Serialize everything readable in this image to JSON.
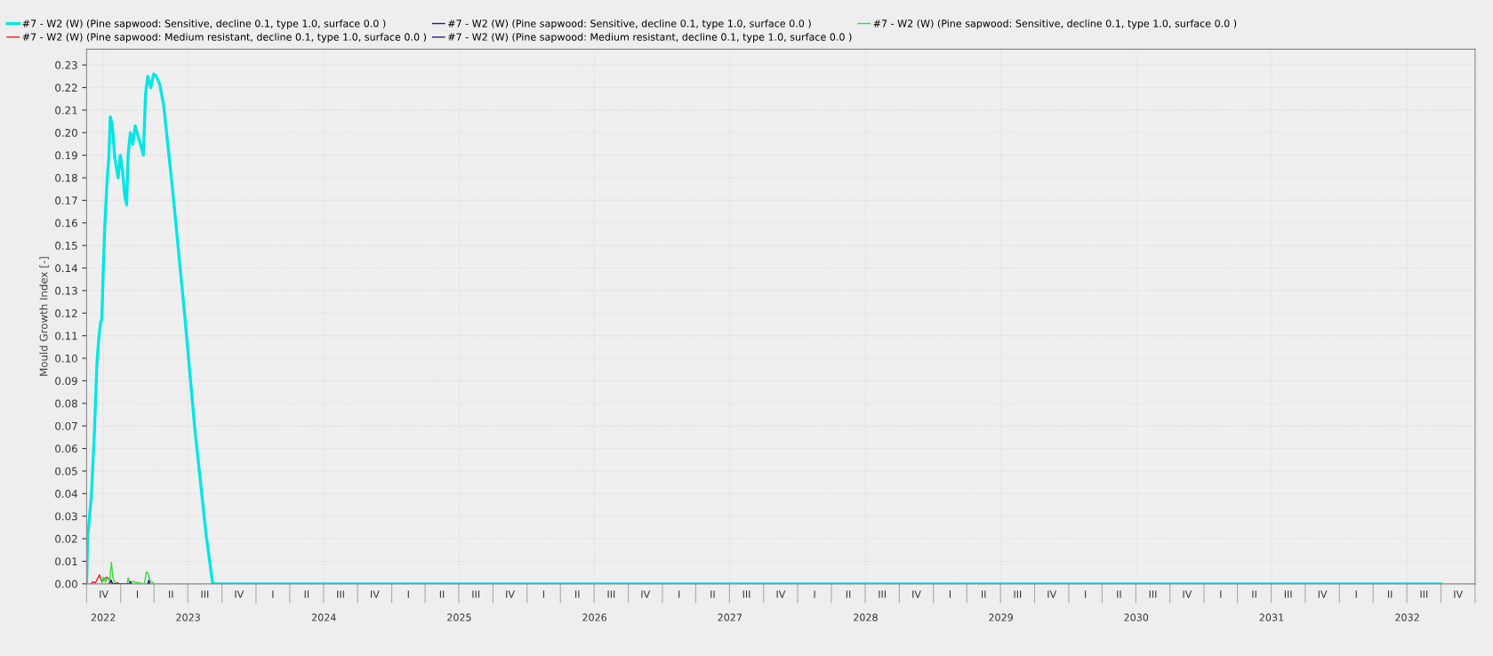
{
  "chart_data": {
    "type": "line",
    "ylabel": "Mould Growth Index [-]",
    "xlim": [
      "2022-10-01",
      "2033-01-01"
    ],
    "ylim": [
      0,
      0.237
    ],
    "yticks": [
      {
        "value": 0,
        "label": "0.00"
      },
      0.01,
      0.02,
      0.03,
      0.04,
      0.05,
      0.06,
      0.07,
      0.08,
      0.09,
      {
        "value": 0.1,
        "label": "0.10"
      },
      0.11,
      0.12,
      0.13,
      0.14,
      0.15,
      0.16,
      0.17,
      0.18,
      0.19,
      {
        "value": 0.2,
        "label": "0.20"
      },
      0.21,
      0.22,
      0.23
    ],
    "annotations": [
      "IV",
      "I",
      "II",
      "III",
      "IV",
      "I",
      "II",
      "III",
      "IV",
      "I",
      "II",
      "III",
      "IV",
      "I",
      "II",
      "III",
      "IV",
      "I",
      "II",
      "III",
      "IV",
      "I",
      "II",
      "III",
      "IV",
      "I",
      "II",
      "III",
      "IV",
      "I",
      "II",
      "III",
      "IV",
      "I",
      "II",
      "III",
      "IV",
      "I",
      "II",
      "III",
      "IV"
    ],
    "xticks": [
      {
        "value": "2022-11-15",
        "label": "2022"
      },
      {
        "value": "2023-07-02",
        "label": "2023"
      },
      {
        "value": "2024-07-02",
        "label": "2024"
      },
      {
        "value": "2025-07-02",
        "label": "2025"
      },
      {
        "value": "2026-07-02",
        "label": "2026"
      },
      {
        "value": "2027-07-02",
        "label": "2027"
      },
      {
        "value": "2028-07-02",
        "label": "2028"
      },
      {
        "value": "2029-07-02",
        "label": "2029"
      },
      {
        "value": "2030-07-02",
        "label": "2030"
      },
      {
        "value": "2031-07-02",
        "label": "2031"
      },
      {
        "value": "2032-07-02",
        "label": "2032"
      }
    ],
    "grid": true,
    "legend": "top",
    "line_style": "solid",
    "series": [
      {
        "name": "#7 - W2 (W) (Pine sapwood: Sensitive, decline 0.1, type 1.0, surface 0.0 )",
        "color": "#00e5e5",
        "x": [
          "2022-10-01",
          "2022-10-04",
          "2022-10-14",
          "2022-10-22",
          "2022-10-29",
          "2022-11-03",
          "2022-11-08",
          "2022-11-11",
          "2022-11-15",
          "2022-11-19",
          "2022-11-25",
          "2022-11-30",
          "2022-12-04",
          "2022-12-09",
          "2022-12-16",
          "2022-12-25",
          "2022-12-31",
          "2023-01-06",
          "2023-01-12",
          "2023-01-17",
          "2023-01-21",
          "2023-01-27",
          "2023-02-03",
          "2023-02-09",
          "2023-02-23",
          "2023-03-03",
          "2023-03-09",
          "2023-03-15",
          "2023-03-23",
          "2023-03-31",
          "2023-04-07",
          "2023-04-17",
          "2023-04-27",
          "2023-05-22",
          "2023-06-21",
          "2023-07-21",
          "2023-08-20",
          "2023-09-06",
          "2032-10-01"
        ],
        "values": [
          0.0,
          0.021,
          0.039,
          0.067,
          0.098,
          0.109,
          0.116,
          0.117,
          0.139,
          0.158,
          0.178,
          0.189,
          0.207,
          0.204,
          0.189,
          0.18,
          0.19,
          0.183,
          0.172,
          0.168,
          0.19,
          0.2,
          0.195,
          0.203,
          0.195,
          0.19,
          0.217,
          0.225,
          0.22,
          0.226,
          0.225,
          0.221,
          0.212,
          0.173,
          0.122,
          0.067,
          0.021,
          0.0,
          0.0
        ]
      },
      {
        "name": "#7 - W2 (W) (Pine sapwood: Sensitive, decline 0.1, type 1.0, surface 0.0 )",
        "color": "#1a1aa0",
        "x": [
          "2022-12-01",
          "2022-12-06",
          "2022-12-10",
          "2023-01-24",
          "2023-01-27",
          "2023-01-30"
        ],
        "values": [
          0.0,
          0.0017,
          0.0,
          0.0,
          0.001,
          0.0
        ]
      },
      {
        "name": "#7 - W2 (W) (Pine sapwood: Sensitive, decline 0.1, type 1.0, surface 0.0 )",
        "color": "#33dd33",
        "x": [
          "2022-11-11",
          "2022-11-15",
          "2022-11-21",
          "2022-11-26",
          "2022-12-02",
          "2022-12-07",
          "2022-12-11",
          "2022-12-16",
          "2022-12-20",
          "2023-01-19",
          "2023-01-21",
          "2023-01-25",
          "2023-02-02",
          "2023-02-10",
          "2023-02-16",
          "2023-03-06",
          "2023-03-11",
          "2023-03-16",
          "2023-03-21",
          "2023-03-31",
          "2023-04-03"
        ],
        "values": [
          0.0,
          0.003,
          0.0008,
          0.0027,
          0.0014,
          0.0095,
          0.0027,
          0.0008,
          0.0,
          0.0,
          0.0027,
          0.0005,
          0.001,
          0.0008,
          0.0005,
          0.0,
          0.0053,
          0.0046,
          0.0014,
          0.0003,
          0.0
        ]
      },
      {
        "name": "#7 - W2 (W) (Pine sapwood: Medium resistant, decline 0.1, type 1.0, surface 0.0 )",
        "color": "#e02020",
        "x": [
          "2022-10-13",
          "2022-10-17",
          "2022-10-25",
          "2022-11-05",
          "2022-11-11",
          "2022-11-19",
          "2022-11-24",
          "2022-12-01",
          "2022-12-07",
          "2022-12-12",
          "2022-12-23",
          "2022-12-28"
        ],
        "values": [
          0.0,
          0.0008,
          0.0005,
          0.004,
          0.001,
          0.0023,
          0.003,
          0.002,
          0.0005,
          0.0,
          0.0005,
          0.0
        ]
      },
      {
        "name": "#7 - W2 (W) (Pine sapwood: Medium resistant, decline 0.1, type 1.0, surface 0.0 )",
        "color": "#22227a",
        "x": [
          "2023-03-15",
          "2023-03-18",
          "2023-03-21"
        ],
        "values": [
          0.0,
          0.0017,
          0.0
        ]
      }
    ]
  }
}
